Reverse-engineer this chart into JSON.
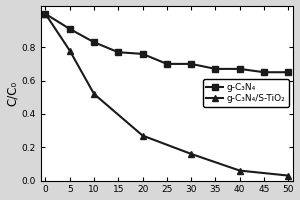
{
  "x": [
    0,
    5,
    10,
    15,
    20,
    25,
    30,
    35,
    40,
    45,
    50
  ],
  "y_gcn": [
    1.0,
    0.91,
    0.83,
    0.77,
    0.76,
    0.7,
    0.7,
    0.67,
    0.67,
    0.65,
    0.65
  ],
  "y_gcn_tio2": [
    1.0,
    0.78,
    0.52,
    0.27,
    0.16,
    0.06,
    0.03
  ],
  "x_tio2": [
    0,
    5,
    10,
    20,
    30,
    40,
    50
  ],
  "label1": "g-C₃N₄",
  "label2": "g-C₃N₄/S-TiO₂",
  "ylabel": "C/C₀",
  "xlim": [
    -1,
    51
  ],
  "ylim": [
    0.0,
    1.05
  ],
  "yticks": [
    0.0,
    0.2,
    0.4,
    0.6,
    0.8
  ],
  "xticks": [
    0,
    5,
    10,
    15,
    20,
    25,
    30,
    35,
    40,
    45,
    50
  ],
  "line_color": "#1a1a1a",
  "marker_square": "s",
  "marker_triangle": "^",
  "markersize": 5,
  "linewidth": 1.5,
  "legend_fontsize": 6.5,
  "tick_fontsize": 6.5,
  "ylabel_fontsize": 8.5
}
